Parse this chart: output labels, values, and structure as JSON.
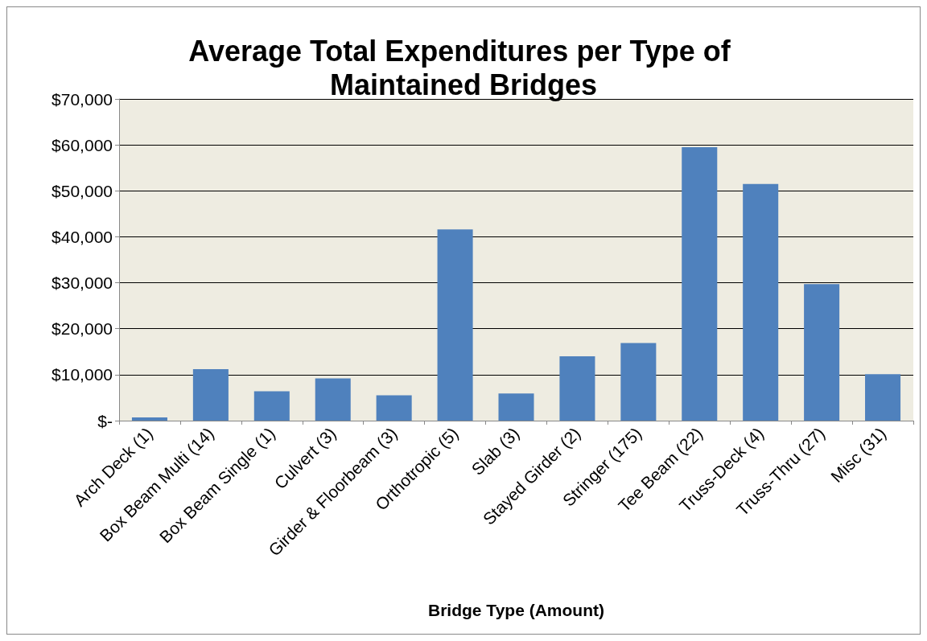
{
  "chart_data": {
    "type": "bar",
    "title": "Average Total Expenditures per Type of Maintained Bridges",
    "xlabel": "Bridge Type (Amount)",
    "categories": [
      "Arch Deck (1)",
      "Box Beam Multi (14)",
      "Box Beam Single (1)",
      "Culvert (3)",
      "Girder & Floorbeam (3)",
      "Orthotropic (5)",
      "Slab (3)",
      "Stayed Girder (2)",
      "Stringer (175)",
      "Tee Beam (22)",
      "Truss-Deck (4)",
      "Truss-Thru (27)",
      "Misc (31)"
    ],
    "values": [
      700,
      11200,
      6400,
      9200,
      5500,
      41600,
      5900,
      14000,
      16900,
      59500,
      51500,
      29700,
      10100
    ],
    "color": "#4f81bd",
    "ylim": [
      0,
      70000
    ],
    "yticks": [
      {
        "value": 0,
        "label": "$-"
      },
      {
        "value": 10000,
        "label": "$10,000"
      },
      {
        "value": 20000,
        "label": "$20,000"
      },
      {
        "value": 30000,
        "label": "$30,000"
      },
      {
        "value": 40000,
        "label": "$40,000"
      },
      {
        "value": 50000,
        "label": "$50,000"
      },
      {
        "value": 60000,
        "label": "$60,000"
      },
      {
        "value": 70000,
        "label": "$70,000"
      }
    ],
    "grid": "y"
  }
}
